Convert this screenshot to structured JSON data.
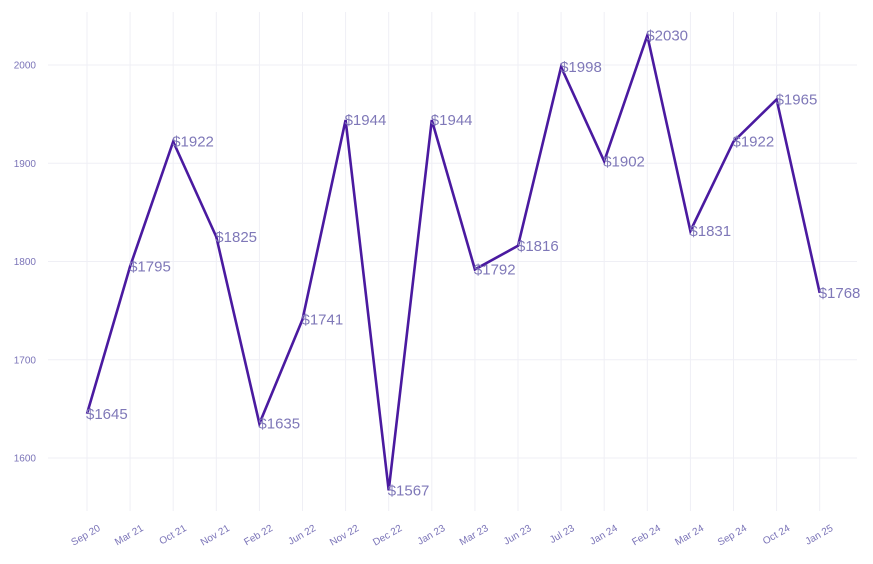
{
  "chart_data": {
    "type": "line",
    "title": "",
    "xlabel": "",
    "ylabel": "",
    "categories": [
      "Sep 20",
      "Mar 21",
      "Oct 21",
      "Nov 21",
      "Feb 22",
      "Jun 22",
      "Nov 22",
      "Dec 22",
      "Jan 23",
      "Mar 23",
      "Jun 23",
      "Jul 23",
      "Jan 24",
      "Feb 24",
      "Mar 24",
      "Sep 24",
      "Oct 24",
      "Jan 25"
    ],
    "values": [
      1645,
      1795,
      1922,
      1825,
      1635,
      1741,
      1944,
      1567,
      1944,
      1792,
      1816,
      1998,
      1902,
      2030,
      1831,
      1922,
      1965,
      1768
    ],
    "data_labels": [
      "$1645",
      "$1795",
      "$1922",
      "$1825",
      "$1635",
      "$1741",
      "$1944",
      "$1567",
      "$1944",
      "$1792",
      "$1816",
      "$1998",
      "$1902",
      "$2030",
      "$1831",
      "$1922",
      "$1965",
      "$1768"
    ],
    "yticks": [
      1600,
      1700,
      1800,
      1900,
      2000
    ],
    "ylim": [
      1550,
      2055
    ],
    "grid": true,
    "line_color": "#4a1aa0",
    "label_color": "#7f78b8"
  }
}
